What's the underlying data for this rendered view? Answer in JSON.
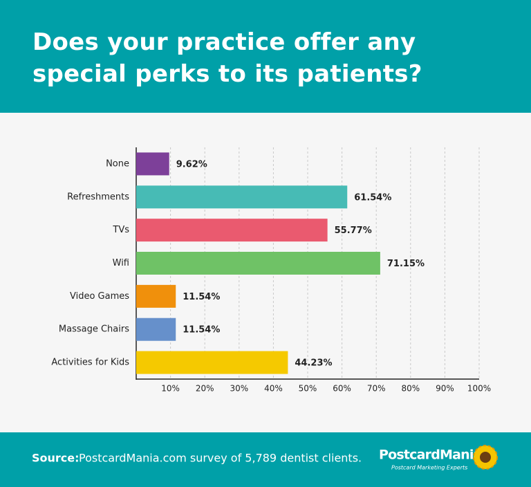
{
  "chart_data": {
    "type": "bar",
    "orientation": "horizontal",
    "title": "Does your practice offer any special perks to its patients?",
    "categories": [
      "None",
      "Refreshments",
      "TVs",
      "Wifi",
      "Video Games",
      "Massage Chairs",
      "Activities for Kids"
    ],
    "values": [
      9.62,
      61.54,
      55.77,
      71.15,
      11.54,
      11.54,
      44.23
    ],
    "value_labels": [
      "9.62%",
      "61.54%",
      "55.77%",
      "71.15%",
      "11.54%",
      "11.54%",
      "44.23%"
    ],
    "colors": [
      "#7d4099",
      "#47bbb5",
      "#ea5a6f",
      "#6fc266",
      "#f0900c",
      "#6690cb",
      "#f5c900"
    ],
    "xlim": [
      0,
      100
    ],
    "xticks": [
      {
        "value": 10,
        "label": "10%"
      },
      {
        "value": 20,
        "label": "20%"
      },
      {
        "value": 30,
        "label": "30%"
      },
      {
        "value": 40,
        "label": "40%"
      },
      {
        "value": 50,
        "label": "50%"
      },
      {
        "value": 60,
        "label": "60%"
      },
      {
        "value": 70,
        "label": "70%"
      },
      {
        "value": 80,
        "label": "80%"
      },
      {
        "value": 90,
        "label": "90%"
      },
      {
        "value": 100,
        "label": "100%"
      }
    ],
    "grid": true
  },
  "footer": {
    "source_label": "Source:",
    "source_text": "PostcardMania.com survey of 5,789 dentist clients.",
    "logo": "PostcardMania",
    "tagline": "Postcard Marketing Experts"
  }
}
